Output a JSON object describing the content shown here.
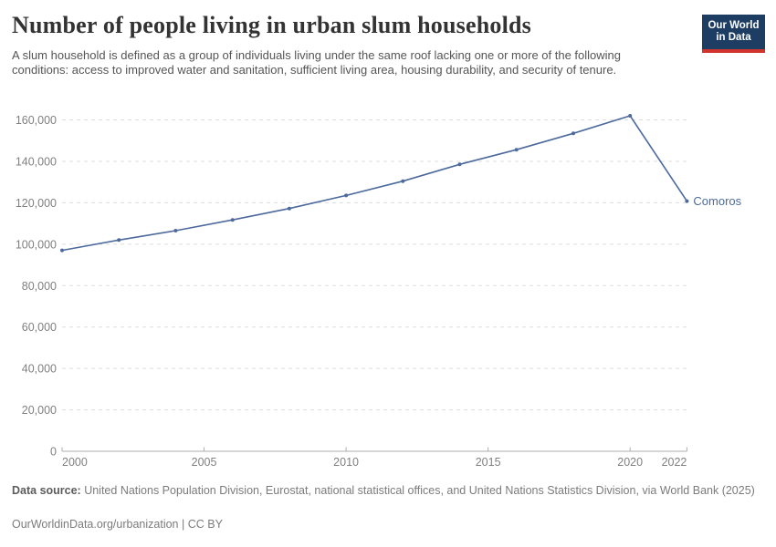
{
  "header": {
    "title": "Number of people living in urban slum households",
    "subtitle": "A slum household is defined as a group of individuals living under the same roof lacking one or more of the following conditions: access to improved water and sanitation, sufficient living area, housing durability, and security of tenure.",
    "logo": {
      "line1": "Our World",
      "line2": "in Data",
      "bg_color": "#1d3d63",
      "bar_color": "#d0342c"
    }
  },
  "chart_data": {
    "type": "line",
    "title": "Number of people living in urban slum households",
    "xlabel": "",
    "ylabel": "",
    "x": [
      2000,
      2002,
      2004,
      2006,
      2008,
      2010,
      2012,
      2014,
      2016,
      2018,
      2020,
      2022
    ],
    "series": [
      {
        "name": "Comoros",
        "color": "#4c6a9c",
        "values": [
          97000,
          102000,
          106500,
          111700,
          117200,
          123500,
          130400,
          138500,
          145600,
          153500,
          162000,
          120800
        ]
      }
    ],
    "xlim": [
      2000,
      2022
    ],
    "ylim": [
      0,
      170000
    ],
    "yticks": [
      0,
      20000,
      40000,
      60000,
      80000,
      100000,
      120000,
      140000,
      160000
    ],
    "xticks": [
      2000,
      2005,
      2010,
      2015,
      2020,
      2022
    ],
    "grid": "horizontal-dashed",
    "legend_position": "end-of-line-label",
    "axis_color": "#adadad",
    "grid_color": "#dddddd",
    "tick_label_color": "#808080"
  },
  "footer": {
    "source_label": "Data source:",
    "source_text": " United Nations Population Division, Eurostat, national statistical offices, and United Nations Statistics Division, via World Bank (2025)",
    "link": "OurWorldinData.org/urbanization",
    "separator": " | ",
    "license": "CC BY"
  }
}
